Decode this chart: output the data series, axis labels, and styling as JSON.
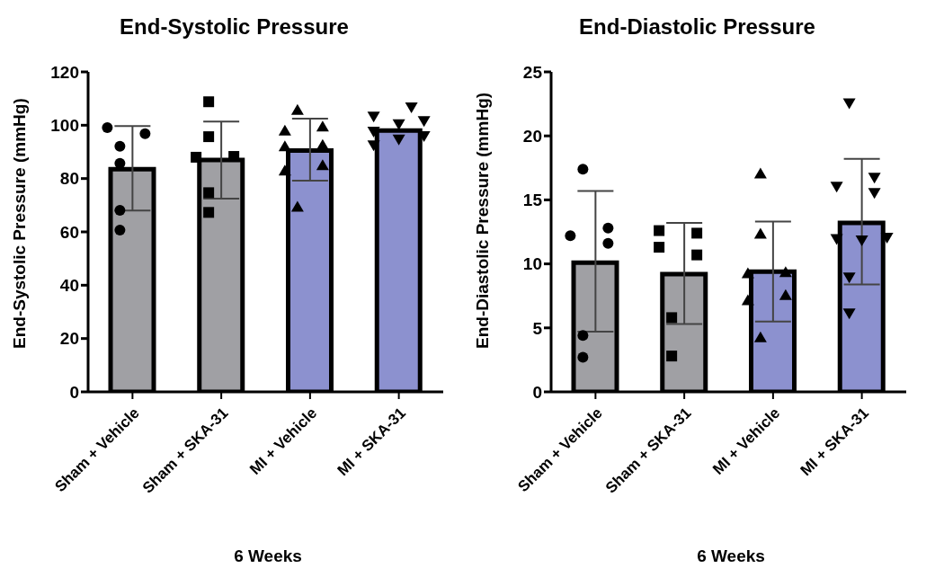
{
  "chart_data": [
    {
      "type": "bar",
      "title": "End-Systolic Pressure",
      "xlabel": "6 Weeks",
      "ylabel": "End-Systolic Pressure (mmHg)",
      "categories": [
        "Sham + Vehicle",
        "Sham + SKA-31",
        "MI + Vehicle",
        "MI + SKA-31"
      ],
      "ylim": [
        0,
        120
      ],
      "yticks": [
        0,
        20,
        40,
        60,
        80,
        100,
        120
      ],
      "grid": false,
      "series": [
        {
          "values": [
            83.5,
            87,
            90.5,
            98
          ],
          "colors": [
            "#a0a0a4",
            "#a0a0a4",
            "#8c91cf",
            "#8c91cf"
          ],
          "errors": [
            [
              68,
              99.7
            ],
            [
              72.5,
              101.4
            ],
            [
              79.2,
              102.5
            ],
            null
          ]
        },
        {
          "type": "scatter",
          "marker": "circle",
          "color": "#000000",
          "x": [
            "Sham + Vehicle",
            "Sham + Vehicle",
            "Sham + Vehicle",
            "Sham + Vehicle",
            "Sham + Vehicle",
            "Sham + Vehicle"
          ],
          "values": [
            96.8,
            99.1,
            92.1,
            85.7,
            68.1,
            60.7
          ]
        },
        {
          "type": "scatter",
          "marker": "square",
          "color": "#000000",
          "x": [
            "Sham + SKA-31",
            "Sham + SKA-31",
            "Sham + SKA-31",
            "Sham + SKA-31",
            "Sham + SKA-31",
            "Sham + SKA-31"
          ],
          "values": [
            108.8,
            95.7,
            88.3,
            88,
            74.7,
            67.3
          ]
        },
        {
          "type": "scatter",
          "marker": "triangle",
          "color": "#000000",
          "x": [
            "MI + Vehicle",
            "MI + Vehicle",
            "MI + Vehicle",
            "MI + Vehicle",
            "MI + Vehicle",
            "MI + Vehicle",
            "MI + Vehicle",
            "MI + Vehicle"
          ],
          "values": [
            105.9,
            99.7,
            98.2,
            92.8,
            92.3,
            85.2,
            83.2,
            69.6
          ]
        },
        {
          "type": "scatter",
          "marker": "triangle-down",
          "color": "#000000",
          "x": [
            "MI + SKA-31",
            "MI + SKA-31",
            "MI + SKA-31",
            "MI + SKA-31",
            "MI + SKA-31",
            "MI + SKA-31",
            "MI + SKA-31",
            "MI + SKA-31"
          ],
          "values": [
            103.1,
            106.5,
            101.4,
            100.2,
            97.4,
            95.7,
            92.3,
            94.5
          ]
        }
      ]
    },
    {
      "type": "bar",
      "title": "End-Diastolic Pressure",
      "xlabel": "6 Weeks",
      "ylabel": "End-Diastolic Pressure (mmHg)",
      "categories": [
        "Sham + Vehicle",
        "Sham + SKA-31",
        "MI + Vehicle",
        "MI + SKA-31"
      ],
      "ylim": [
        0,
        25
      ],
      "yticks": [
        0,
        5,
        10,
        15,
        20,
        25
      ],
      "grid": false,
      "series": [
        {
          "values": [
            10.1,
            9.2,
            9.4,
            13.2
          ],
          "colors": [
            "#a0a0a4",
            "#a0a0a4",
            "#8c91cf",
            "#8c91cf"
          ],
          "errors": [
            [
              4.7,
              15.7
            ],
            [
              5.3,
              13.2
            ],
            [
              5.5,
              13.3
            ],
            [
              8.4,
              18.2
            ]
          ]
        },
        {
          "type": "scatter",
          "marker": "circle",
          "color": "#000000",
          "x": [
            "Sham + Vehicle",
            "Sham + Vehicle",
            "Sham + Vehicle",
            "Sham + Vehicle",
            "Sham + Vehicle",
            "Sham + Vehicle"
          ],
          "values": [
            17.4,
            12.8,
            11.6,
            12.2,
            4.4,
            2.7
          ]
        },
        {
          "type": "scatter",
          "marker": "square",
          "color": "#000000",
          "x": [
            "Sham + SKA-31",
            "Sham + SKA-31",
            "Sham + SKA-31",
            "Sham + SKA-31",
            "Sham + SKA-31",
            "Sham + SKA-31"
          ],
          "values": [
            12.4,
            10.7,
            12.6,
            11.3,
            5.8,
            2.8
          ]
        },
        {
          "type": "scatter",
          "marker": "triangle",
          "color": "#000000",
          "x": [
            "MI + Vehicle",
            "MI + Vehicle",
            "MI + Vehicle",
            "MI + Vehicle",
            "MI + Vehicle",
            "MI + Vehicle",
            "MI + Vehicle"
          ],
          "values": [
            17.1,
            12.4,
            9.4,
            9.3,
            7.6,
            7.2,
            4.3
          ]
        },
        {
          "type": "scatter",
          "marker": "triangle-down",
          "color": "#000000",
          "x": [
            "MI + SKA-31",
            "MI + SKA-31",
            "MI + SKA-31",
            "MI + SKA-31",
            "MI + SKA-31",
            "MI + SKA-31",
            "MI + SKA-31",
            "MI + SKA-31",
            "MI + SKA-31"
          ],
          "values": [
            22.5,
            16.7,
            16,
            15.5,
            11.9,
            12,
            11.8,
            8.9,
            6.1
          ]
        }
      ]
    }
  ]
}
